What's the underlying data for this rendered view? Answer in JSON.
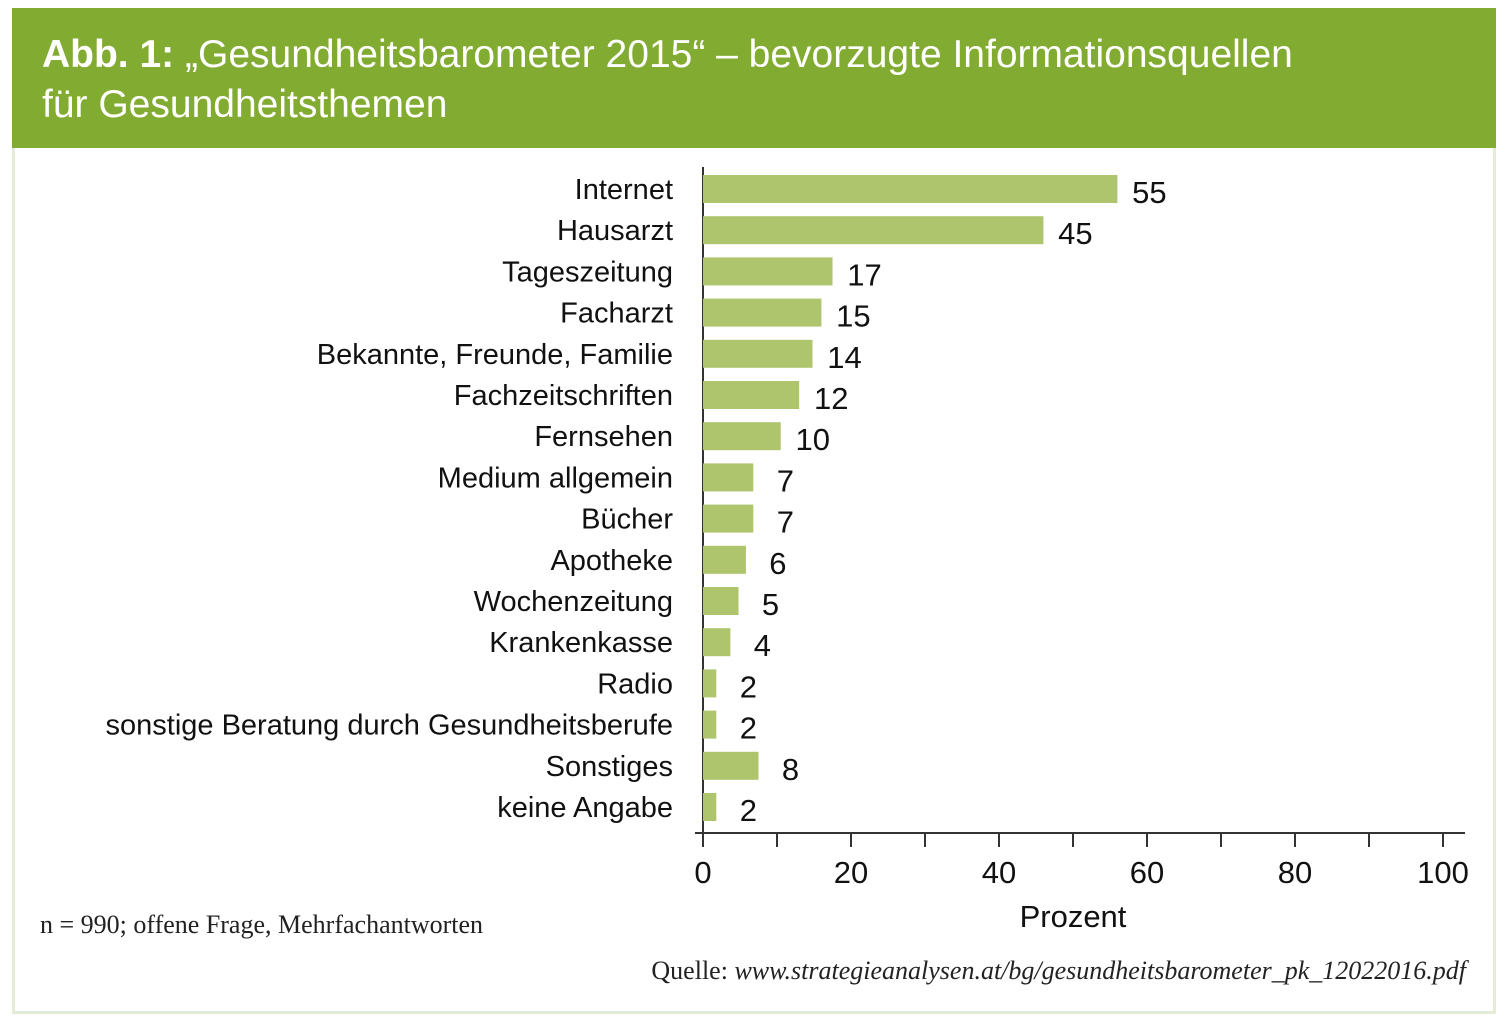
{
  "figure": {
    "title_prefix": "Abb. 1:",
    "title_line1": "„Gesundheitsbarometer 2015“  – bevorzugte Informationsquellen",
    "title_line2": "für Gesundheitsthemen",
    "note": "n = 990; offene Frage, Mehrfachantworten",
    "source_label": "Quelle:",
    "source_url": "www.strategieanalysen.at/bg/gesundheitsbarometer_pk_12022016.pdf"
  },
  "colors": {
    "header_bg": "#82ab32",
    "bar_fill": "#aec46d",
    "axis": "#333333"
  },
  "chart_data": {
    "type": "bar",
    "orientation": "horizontal",
    "title": "„Gesundheitsbarometer 2015“ – bevorzugte Informationsquellen für Gesundheitsthemen",
    "categories": [
      "Internet",
      "Hausarzt",
      "Tageszeitung",
      "Facharzt",
      "Bekannte, Freunde, Familie",
      "Fachzeitschriften",
      "Fernsehen",
      "Medium allgemein",
      "Bücher",
      "Apotheke",
      "Wochenzeitung",
      "Krankenkasse",
      "Radio",
      "sonstige Beratung durch Gesundheitsberufe",
      "Sonstiges",
      "keine Angabe"
    ],
    "values": [
      55,
      45,
      17,
      15,
      14,
      12,
      10,
      7,
      7,
      6,
      5,
      4,
      2,
      2,
      8,
      2
    ],
    "bar_lengths": [
      56,
      46,
      17.5,
      16,
      14.8,
      13,
      10.5,
      6.8,
      6.8,
      5.8,
      4.8,
      3.7,
      1.8,
      1.8,
      7.5,
      1.8
    ],
    "xlabel": "Prozent",
    "ylabel": "",
    "xlim": [
      0,
      100
    ],
    "xticks": [
      0,
      20,
      40,
      60,
      80,
      100
    ],
    "grid": false,
    "legend": "none"
  }
}
